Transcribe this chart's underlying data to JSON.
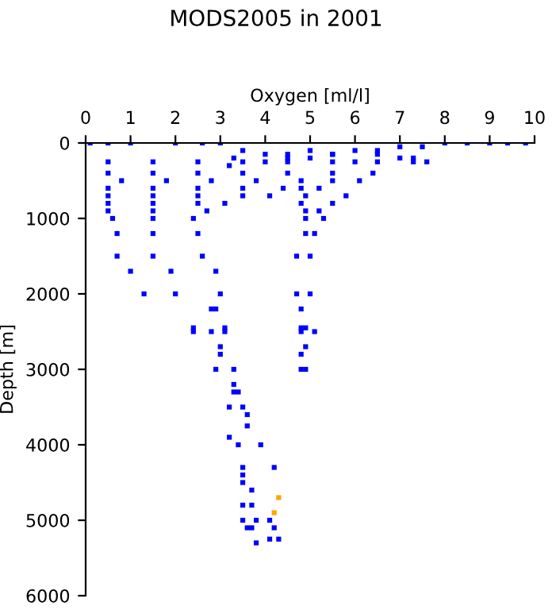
{
  "chart_data": {
    "type": "scatter",
    "title": "MODS2005 in 2001",
    "xlabel": "Oxygen [ml/l]",
    "ylabel": "Depth [m]",
    "xlim": [
      0,
      10
    ],
    "xticks": [
      0,
      1,
      2,
      3,
      4,
      5,
      6,
      7,
      8,
      9,
      10
    ],
    "ylim": [
      6000,
      0
    ],
    "yticks": [
      0,
      1000,
      2000,
      3000,
      4000,
      5000,
      6000
    ],
    "marker": "square",
    "grid": false,
    "series": [
      {
        "color": "#0000ff",
        "x": [
          0.1,
          0.5,
          1.0,
          2.0,
          2.6,
          3.0,
          3.5,
          4.0,
          4.5,
          5.0,
          5.5,
          6.0,
          6.5,
          7.0,
          7.5,
          8.0,
          8.5,
          9.0,
          9.4,
          9.8,
          3.2,
          4.0,
          5.0,
          6.0,
          7.0,
          7.6,
          3.3,
          4.5,
          5.5,
          6.5,
          7.3,
          0.5,
          1.5,
          2.5,
          3.5,
          4.5,
          5.5,
          6.5,
          7.3,
          0.5,
          1.5,
          2.5,
          3.5,
          4.5,
          5.5,
          6.4,
          0.8,
          1.8,
          2.8,
          3.8,
          4.8,
          5.5,
          6.1,
          0.5,
          1.5,
          2.5,
          3.5,
          4.4,
          4.8,
          5.2,
          0.5,
          1.5,
          2.5,
          3.5,
          4.1,
          4.9,
          5.8,
          0.5,
          1.5,
          2.5,
          3.1,
          4.8,
          5.5,
          0.5,
          1.5,
          2.7,
          4.9,
          5.2,
          0.6,
          1.5,
          2.4,
          4.9,
          5.3,
          0.7,
          1.5,
          2.5,
          4.9,
          5.1,
          0.7,
          1.5,
          2.6,
          4.7,
          5.0,
          1.0,
          1.9,
          2.9,
          1.3,
          2.0,
          3.0,
          4.7,
          5.0,
          2.8,
          2.9,
          4.8,
          2.4,
          3.1,
          4.8,
          4.9,
          2.4,
          2.8,
          3.1,
          4.8,
          5.1,
          3.0,
          4.9,
          3.0,
          4.8,
          2.9,
          3.3,
          4.8,
          4.9,
          3.3,
          3.3,
          3.4,
          3.2,
          3.5,
          3.6,
          3.6,
          3.2,
          3.4,
          3.9,
          4.2,
          3.5,
          3.5,
          3.5,
          3.7,
          3.5,
          3.7,
          3.5,
          3.8,
          4.1,
          3.6,
          3.7,
          4.2,
          4.1,
          4.3,
          3.8
        ],
        "values": [
          0,
          0,
          0,
          0,
          0,
          0,
          100,
          150,
          200,
          100,
          150,
          100,
          100,
          50,
          50,
          0,
          0,
          0,
          0,
          0,
          300,
          250,
          200,
          250,
          200,
          250,
          200,
          150,
          150,
          150,
          200,
          250,
          250,
          250,
          250,
          250,
          250,
          250,
          250,
          400,
          400,
          400,
          400,
          400,
          400,
          400,
          500,
          500,
          500,
          500,
          500,
          500,
          500,
          600,
          600,
          600,
          600,
          600,
          600,
          600,
          700,
          700,
          700,
          700,
          700,
          700,
          700,
          800,
          800,
          800,
          800,
          800,
          800,
          900,
          900,
          900,
          900,
          900,
          1000,
          1000,
          1000,
          1000,
          1000,
          1200,
          1200,
          1200,
          1200,
          1200,
          1500,
          1500,
          1500,
          1500,
          1500,
          1700,
          1700,
          1700,
          2000,
          2000,
          2000,
          2000,
          2000,
          2200,
          2200,
          2200,
          2450,
          2450,
          2450,
          2450,
          2500,
          2500,
          2500,
          2500,
          2500,
          2700,
          2700,
          2800,
          2800,
          3000,
          3000,
          3000,
          3000,
          3200,
          3300,
          3300,
          3500,
          3500,
          3600,
          3750,
          3900,
          4000,
          4000,
          4300,
          4300,
          4400,
          4500,
          4600,
          4800,
          4800,
          5000,
          5000,
          5000,
          5100,
          5100,
          5100,
          5250,
          5250,
          5300
        ]
      },
      {
        "color": "#ffa500",
        "x": [
          4.3,
          4.2
        ],
        "values": [
          4700,
          4900
        ]
      }
    ]
  }
}
